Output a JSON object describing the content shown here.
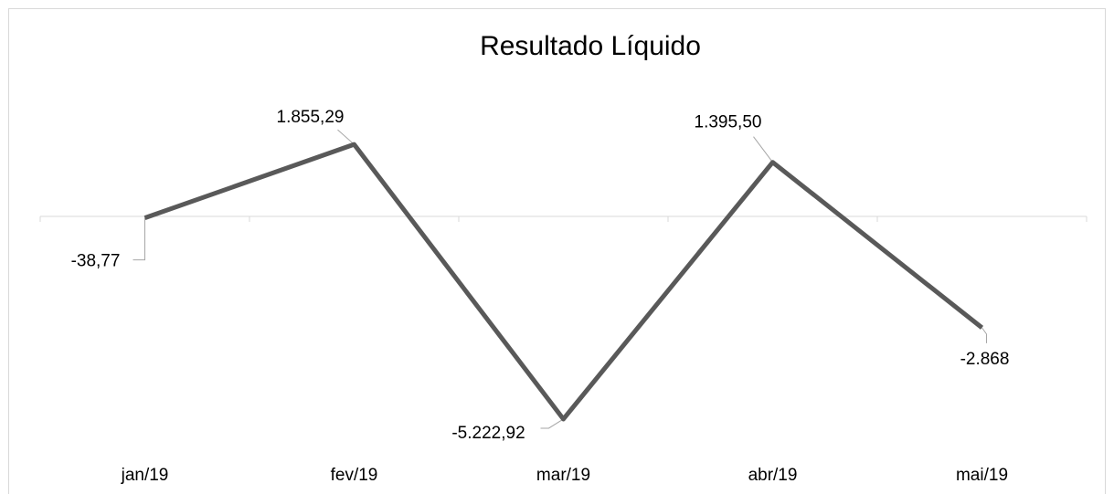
{
  "chart_data": {
    "type": "line",
    "title": "Resultado Líquido",
    "categories": [
      "jan/19",
      "fev/19",
      "mar/19",
      "abr/19",
      "mai/19"
    ],
    "values": [
      -38.77,
      1855.29,
      -5222.92,
      1395.5,
      -2868
    ],
    "value_labels": [
      "-38,77",
      "1.855,29",
      "-5.222,92",
      "1.395,50",
      "-2.868"
    ],
    "color": "#595959",
    "ylim": [
      -6000,
      2000
    ]
  }
}
